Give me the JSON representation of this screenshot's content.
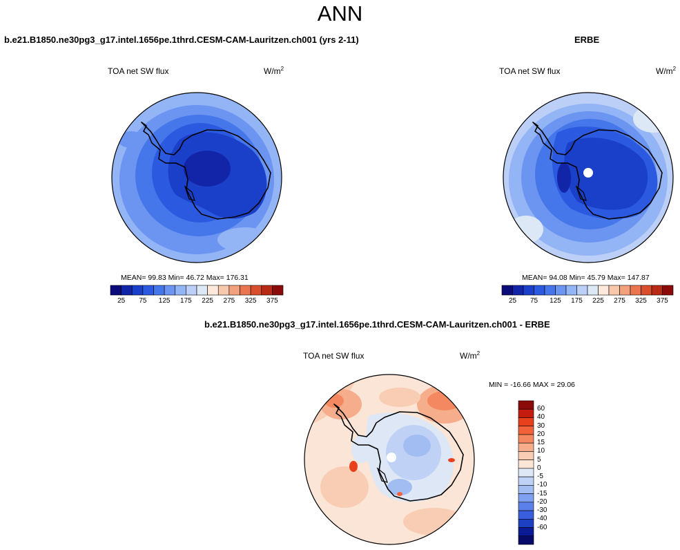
{
  "figure": {
    "title": "ANN"
  },
  "panel_model": {
    "title": "b.e21.B1850.ne30pg3_g17.intel.1656pe.1thrd.CESM-CAM-Lauritzen.ch001 (yrs 2-11)",
    "variable": "TOA net SW flux",
    "units_base": "W/m",
    "units_exp": "2",
    "mean_text": "MEAN=  99.83  Min=  46.72  Max= 176.31"
  },
  "panel_obs": {
    "title": "ERBE",
    "variable": "TOA net SW flux",
    "units_base": "W/m",
    "units_exp": "2",
    "mean_text": "MEAN=  94.08  Min=  45.79  Max= 147.87"
  },
  "panel_diff": {
    "title": "b.e21.B1850.ne30pg3_g17.intel.1656pe.1thrd.CESM-CAM-Lauritzen.ch001 - ERBE",
    "variable": "TOA net SW flux",
    "units_base": "W/m",
    "units_exp": "2",
    "minmax_text": "MIN = -16.66 MAX =  29.06"
  },
  "colorbar_abs": {
    "colors": [
      "#0b0b7a",
      "#1225a8",
      "#1a3fc9",
      "#2b5ae0",
      "#4677ea",
      "#6b95f0",
      "#93b4f5",
      "#bcd0f7",
      "#dde8f6",
      "#fde9dc",
      "#f7c8ac",
      "#f2a17d",
      "#ea7650",
      "#d94e2c",
      "#b82a15",
      "#8b0a0a"
    ],
    "labels": [
      "25",
      "75",
      "125",
      "175",
      "225",
      "275",
      "325",
      "375"
    ]
  },
  "colorbar_diff": {
    "colors": [
      "#8b0a0a",
      "#c41d10",
      "#e8401c",
      "#f1623a",
      "#f48860",
      "#f6ad8c",
      "#f8cdb4",
      "#fbe5d6",
      "#dde7f6",
      "#bfd1f5",
      "#a2bdf2",
      "#7f9ff0",
      "#5b80ea",
      "#3a5fde",
      "#1d3fc2",
      "#0a1a95",
      "#080a6a"
    ],
    "labels": [
      "60",
      "40",
      "30",
      "20",
      "15",
      "10",
      "5",
      "0",
      "-5",
      "-10",
      "-15",
      "-20",
      "-30",
      "-40",
      "-60"
    ]
  },
  "icons": [
    "antarctica-coastline",
    "south-pole-missing-data-dot"
  ]
}
